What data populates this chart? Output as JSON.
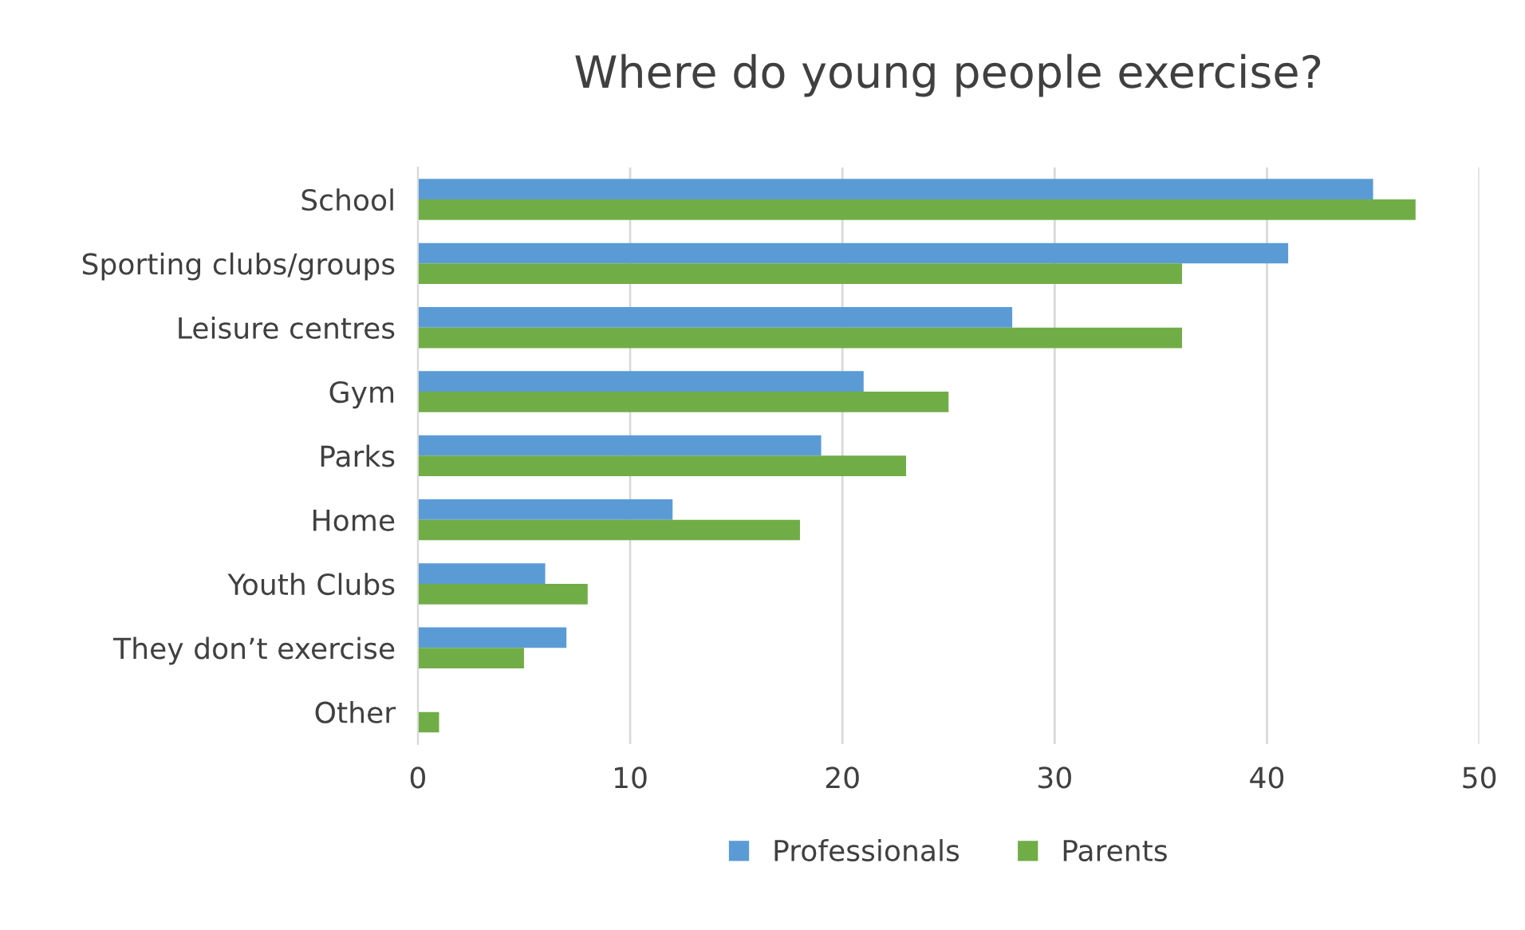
{
  "chart_data": {
    "type": "bar",
    "orientation": "horizontal",
    "title": "Where do young people exercise?",
    "categories": [
      "School",
      "Sporting clubs/groups",
      "Leisure centres",
      "Gym",
      "Parks",
      "Home",
      "Youth Clubs",
      "They don’t exercise",
      "Other"
    ],
    "series": [
      {
        "name": "Professionals",
        "color": "#5b9bd5",
        "values": [
          45,
          41,
          28,
          21,
          19,
          12,
          6,
          7,
          null
        ]
      },
      {
        "name": "Parents",
        "color": "#70ad47",
        "values": [
          47,
          36,
          36,
          25,
          23,
          18,
          8,
          5,
          1
        ]
      }
    ],
    "xlim": [
      0,
      50
    ],
    "xticks": [
      0,
      10,
      20,
      30,
      40,
      50
    ],
    "grid": "x",
    "legend": "bottom"
  }
}
